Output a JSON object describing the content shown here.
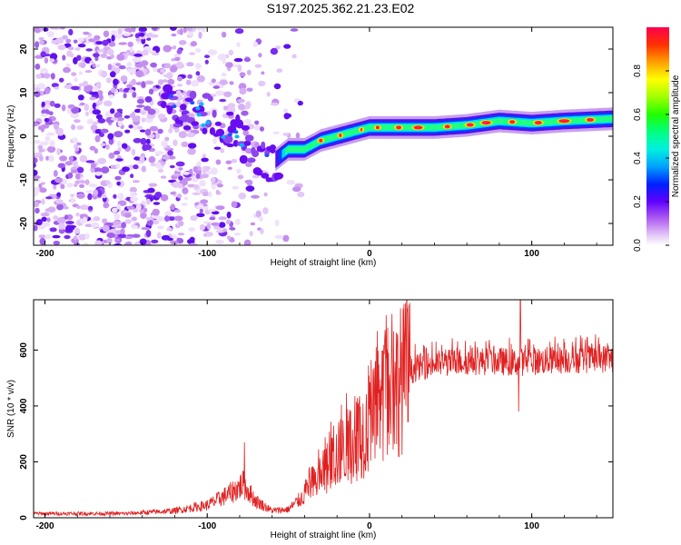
{
  "title": "S197.2025.362.21.23.E02",
  "chart_data": [
    {
      "type": "heatmap",
      "name": "spectrogram",
      "xlabel": "Height of straight line (km)",
      "ylabel": "Frequency (Hz)",
      "xlim": [
        -207,
        150
      ],
      "ylim": [
        -25,
        25
      ],
      "xticks": [
        -200,
        -100,
        0,
        100
      ],
      "yticks": [
        -20,
        -10,
        0,
        10,
        20
      ],
      "colorbar": {
        "label": "Normalized spectral amplitude",
        "range": [
          0,
          1
        ],
        "ticks": [
          "0.0",
          "0.2",
          "0.4",
          "0.6",
          "0.8"
        ],
        "colors": [
          "#f0e0f8",
          "#c88ce8",
          "#8000ff",
          "#0000ff",
          "#00c0ff",
          "#00ffa0",
          "#00ff00",
          "#a0ff00",
          "#ffff00",
          "#ffa000",
          "#ff4000",
          "#ff0060"
        ]
      },
      "ridge": {
        "x": [
          -125,
          -110,
          -100,
          -90,
          -80,
          -70,
          -60,
          -50,
          -40,
          -30,
          -20,
          -10,
          0,
          10,
          20,
          40,
          60,
          80,
          100,
          120,
          150
        ],
        "y": [
          7,
          6,
          5,
          2,
          0,
          -4,
          -6,
          -3,
          -3,
          -1,
          0,
          1,
          2,
          2,
          2,
          2,
          2.5,
          3.5,
          3,
          3.5,
          4
        ]
      }
    },
    {
      "type": "line",
      "name": "snr",
      "xlabel": "Height of straight line (km)",
      "ylabel": "SNR (10 * v/v)",
      "xlim": [
        -207,
        150
      ],
      "ylim": [
        0,
        780
      ],
      "xticks": [
        -200,
        -100,
        0,
        100
      ],
      "yticks": [
        0,
        200,
        400,
        600
      ],
      "color": "#e02020",
      "envelope": {
        "x": [
          -207,
          -150,
          -120,
          -100,
          -85,
          -78,
          -70,
          -60,
          -50,
          -40,
          -30,
          -20,
          -10,
          0,
          10,
          20,
          30,
          40,
          60,
          80,
          90,
          100,
          120,
          150
        ],
        "y": [
          15,
          15,
          25,
          45,
          90,
          120,
          60,
          25,
          30,
          80,
          150,
          220,
          270,
          330,
          420,
          500,
          540,
          550,
          560,
          560,
          555,
          560,
          565,
          570
        ]
      },
      "spikes": [
        {
          "x": -77,
          "y": 270
        },
        {
          "x": 93,
          "y": 780
        },
        {
          "x": 92,
          "y": 380
        }
      ]
    }
  ]
}
